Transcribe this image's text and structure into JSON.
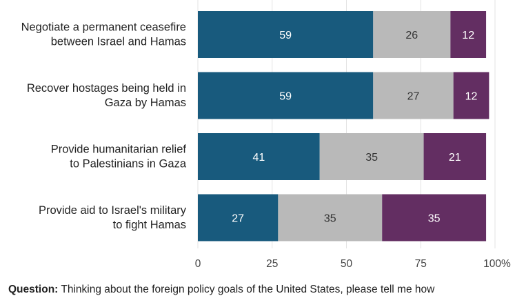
{
  "chart_data": {
    "type": "bar",
    "orientation": "horizontal",
    "stacked": true,
    "categories": [
      [
        "Negotiate a permanent ceasefire",
        "between Israel and Hamas"
      ],
      [
        "Recover hostages being held in",
        "Gaza by Hamas"
      ],
      [
        "Provide humanitarian relief",
        "to Palestinians in Gaza"
      ],
      [
        "Provide aid to Israel's military",
        "to fight Hamas"
      ]
    ],
    "series": [
      {
        "color": "#185a7d",
        "values": [
          59,
          59,
          41,
          27
        ]
      },
      {
        "color": "#b9b9b9",
        "values": [
          26,
          27,
          35,
          35
        ]
      },
      {
        "color": "#632e62",
        "values": [
          12,
          12,
          21,
          35
        ]
      }
    ],
    "xlim": [
      0,
      100
    ],
    "xticks": [
      "0",
      "25",
      "50",
      "75",
      "100%"
    ],
    "grid": true
  },
  "footnote": {
    "label": "Question:",
    "text": " Thinking about the foreign policy goals of the United States, please tell me how"
  }
}
